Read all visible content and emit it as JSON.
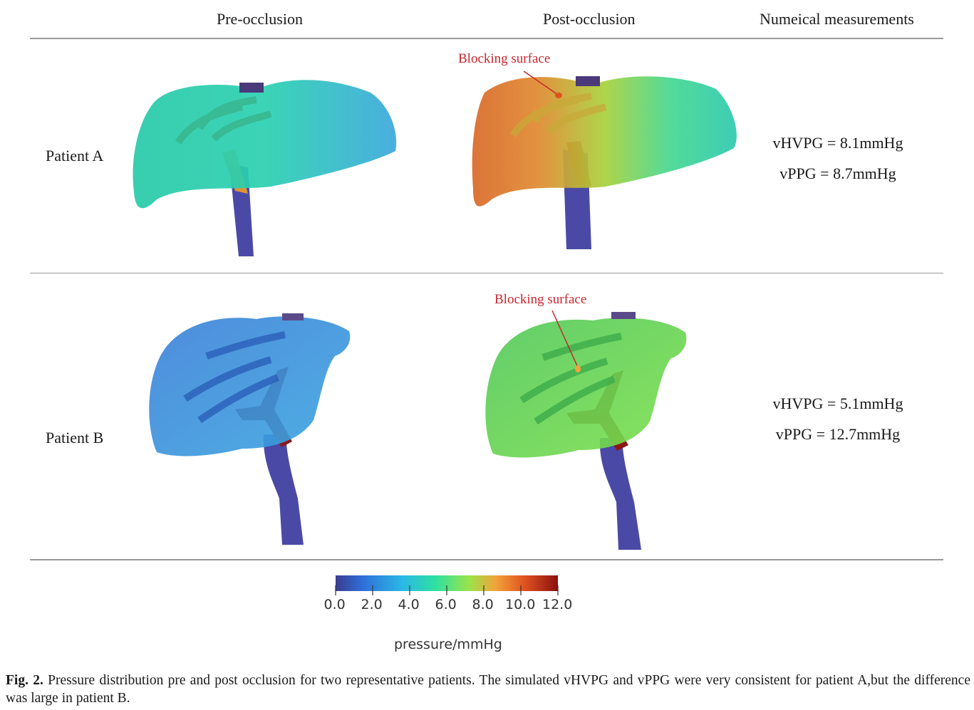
{
  "headers": {
    "pre": "Pre-occlusion",
    "post": "Post-occlusion",
    "measurements": "Numeical measurements"
  },
  "patients": [
    {
      "label": "Patient A",
      "vhvpg": "vHVPG = 8.1mmHg",
      "vppg": "vPPG = 8.7mmHg",
      "blocking_label": "Blocking surface"
    },
    {
      "label": "Patient B",
      "vhvpg": "vHVPG = 5.1mmHg",
      "vppg": "vPPG = 12.7mmHg",
      "blocking_label": "Blocking surface"
    }
  ],
  "colorbar": {
    "ticks": [
      "0.0",
      "2.0",
      "4.0",
      "6.0",
      "8.0",
      "10.0",
      "12.0"
    ],
    "label": "pressure/mmHg",
    "colors": [
      "#3b3b8f",
      "#2f6fd8",
      "#2ab8e6",
      "#2fe0a0",
      "#9be34a",
      "#f2a33a",
      "#e0521f",
      "#8a1010"
    ]
  },
  "caption": {
    "prefix": "Fig. 2.",
    "text": " Pressure distribution pre and post occlusion for two representative patients. The simulated vHVPG and vPPG were very consistent for patient A,but the difference was large in patient B."
  }
}
